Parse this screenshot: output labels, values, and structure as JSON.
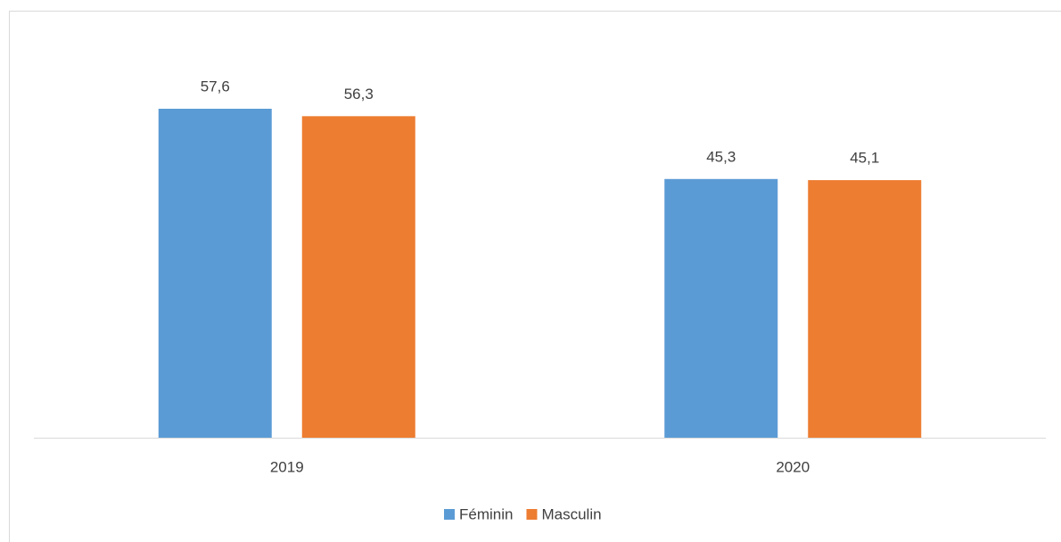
{
  "chart_data": {
    "type": "bar",
    "categories": [
      "2019",
      "2020"
    ],
    "series": [
      {
        "name": "Féminin",
        "color": "#5b9bd5",
        "values": [
          57.6,
          45.3
        ],
        "value_labels": [
          "57,6",
          "45,3"
        ]
      },
      {
        "name": "Masculin",
        "color": "#ed7d31",
        "values": [
          56.3,
          45.1
        ],
        "value_labels": [
          "56,3",
          "45,1"
        ]
      }
    ],
    "legend": "bottom"
  }
}
